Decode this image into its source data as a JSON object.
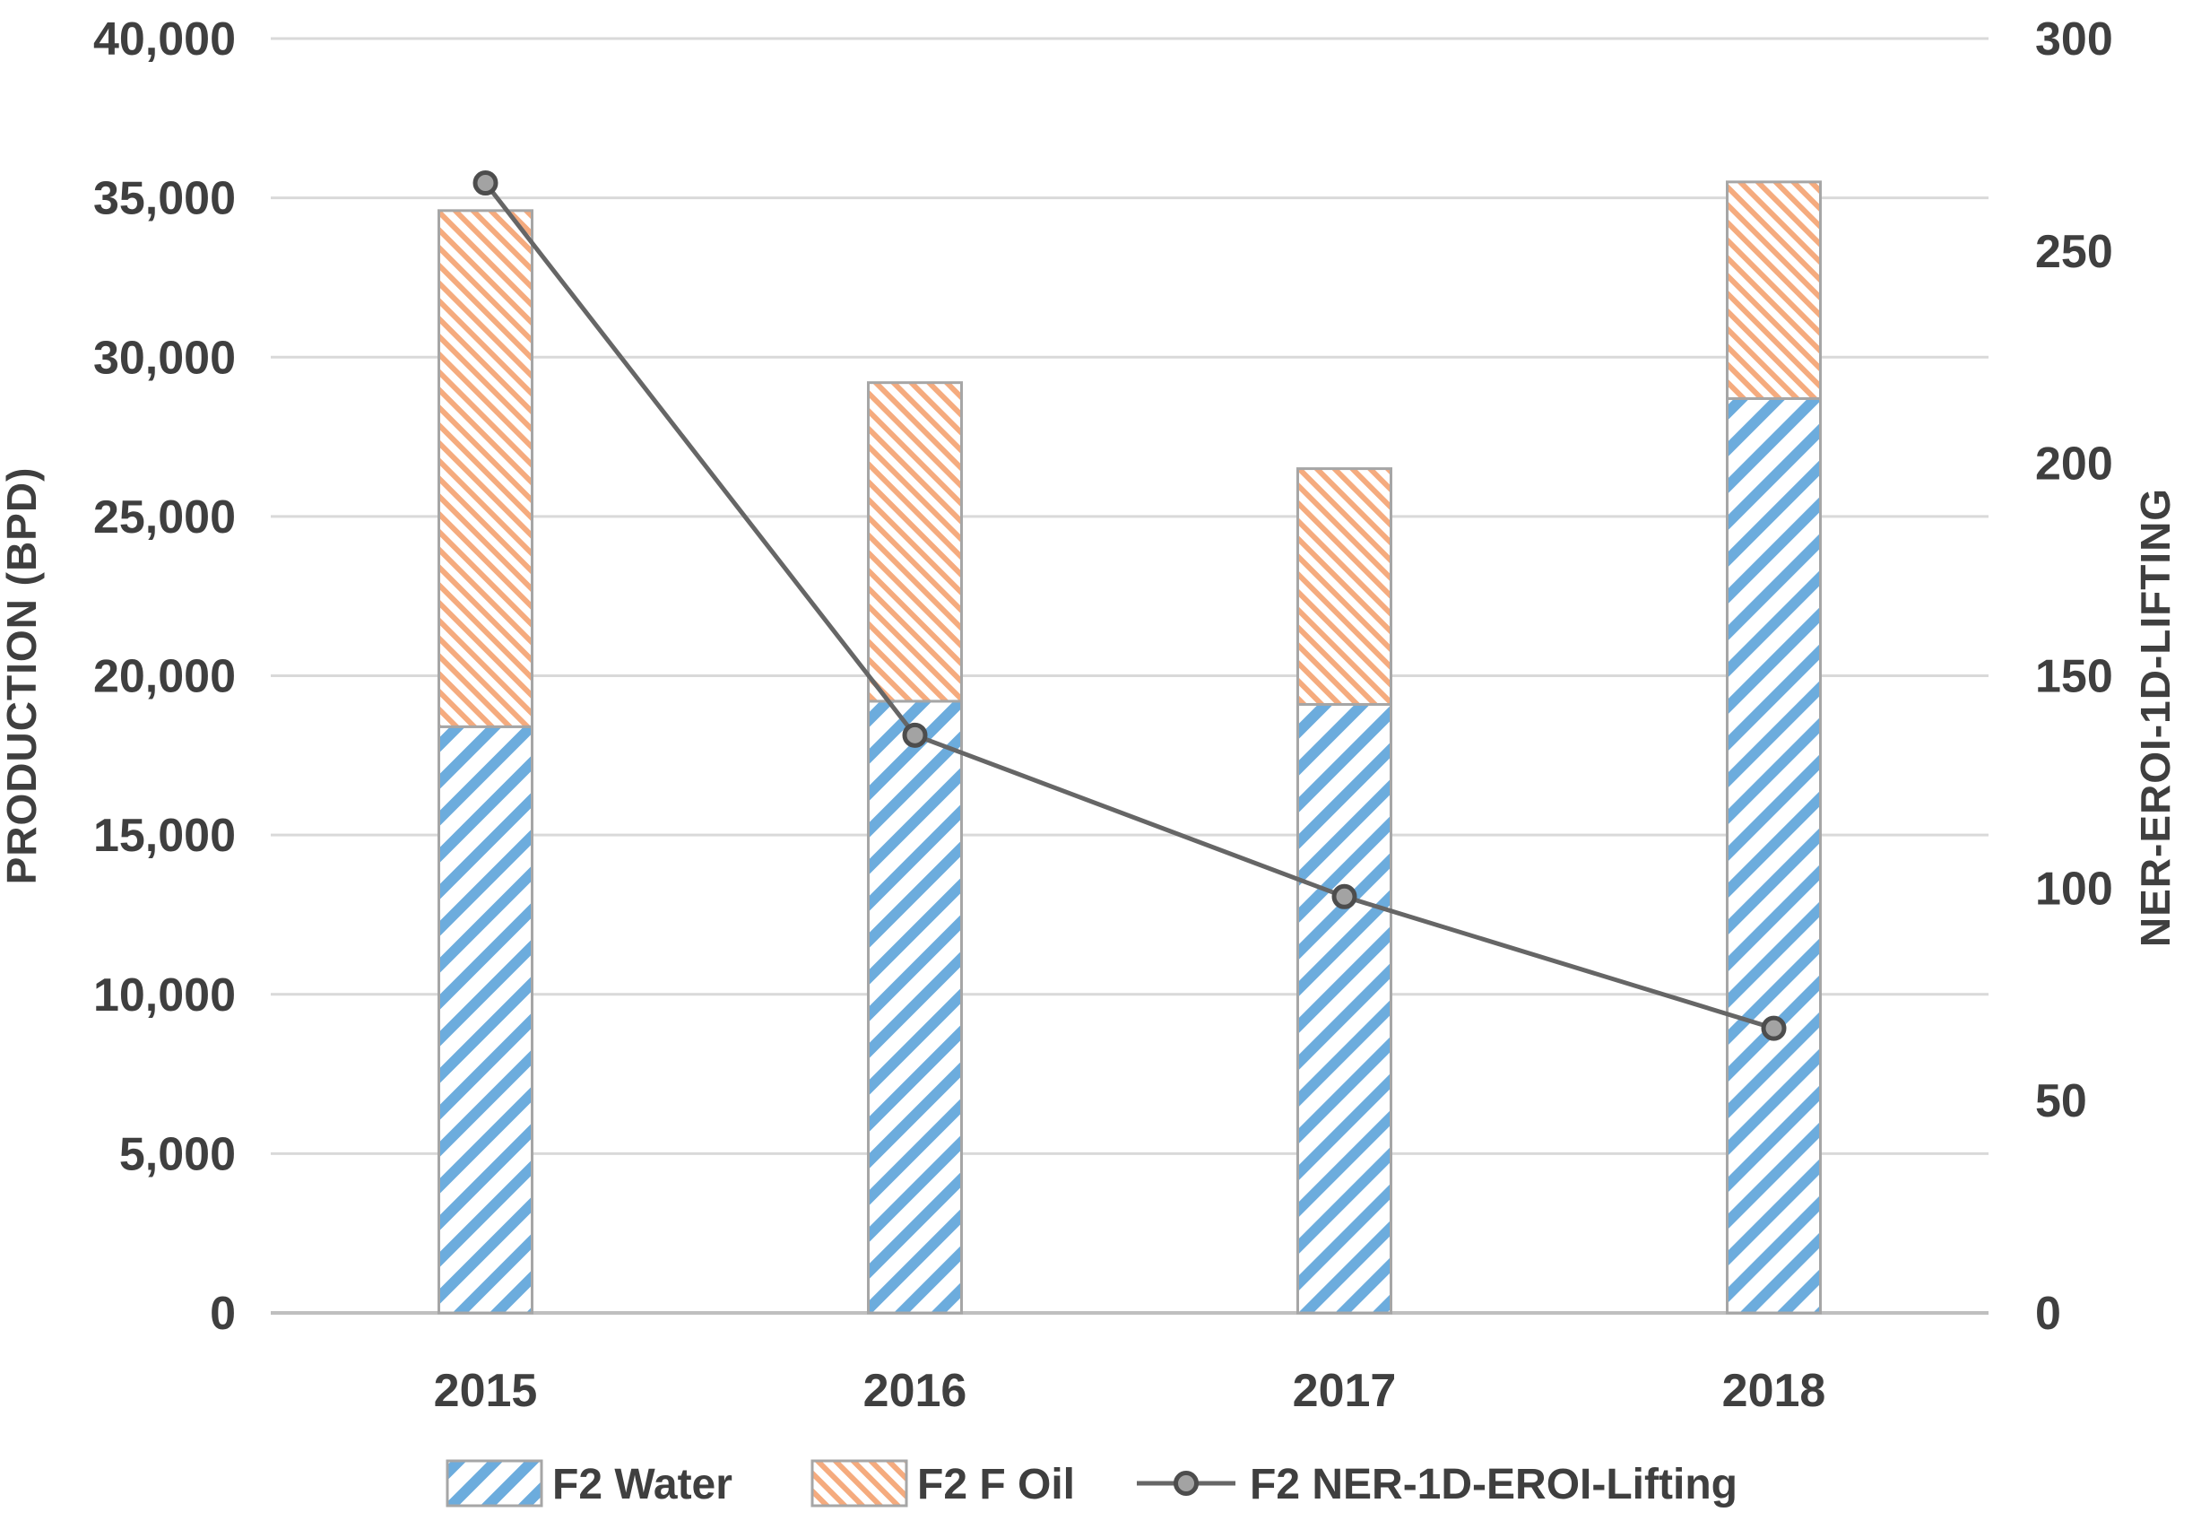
{
  "chart_data": {
    "type": "combo-stacked-bar-line",
    "categories": [
      "2015",
      "2016",
      "2017",
      "2018"
    ],
    "series": [
      {
        "name": "F2 Water",
        "type": "bar",
        "stack": "production",
        "axis": "left",
        "values": [
          18400,
          19200,
          19100,
          28700
        ],
        "pattern": "diagonal-up-hatch",
        "color": "#6CACDD"
      },
      {
        "name": "F2 F Oil",
        "type": "bar",
        "stack": "production",
        "axis": "left",
        "values": [
          16200,
          10000,
          7400,
          6800
        ],
        "pattern": "diagonal-down-hatch",
        "color": "#F5AB7E"
      },
      {
        "name": "F2 NER-1D-EROI-Lifting",
        "type": "line",
        "axis": "right",
        "values": [
          266,
          136,
          98,
          67
        ],
        "color": "#666666",
        "marker": "circle"
      }
    ],
    "stack_totals": [
      34600,
      29200,
      26500,
      35500
    ],
    "left_axis": {
      "title": "PRODUCTION (BPD)",
      "min": 0,
      "max": 40000,
      "step": 5000,
      "tick_labels": [
        "0",
        "5,000",
        "10,000",
        "15,000",
        "20,000",
        "25,000",
        "30,000",
        "35,000",
        "40,000"
      ]
    },
    "right_axis": {
      "title": "NER-EROI-1D-LIFTING",
      "min": 0,
      "max": 300,
      "step": 50,
      "tick_labels": [
        "0",
        "50",
        "100",
        "150",
        "200",
        "250",
        "300"
      ]
    },
    "grid": "horizontal",
    "legend_position": "bottom"
  },
  "colors": {
    "background": "#ffffff",
    "gridline": "#D9D9D9",
    "axis_line": "#BFBFBF",
    "bar_border": "#A6A6A6",
    "water_hatch": "#6CACDD",
    "oil_hatch": "#F5AB7E",
    "line_series": "#666666",
    "marker_fill": "#A3A3A3",
    "marker_ring": "#4D4D4D",
    "text": "#3F3F3F"
  }
}
